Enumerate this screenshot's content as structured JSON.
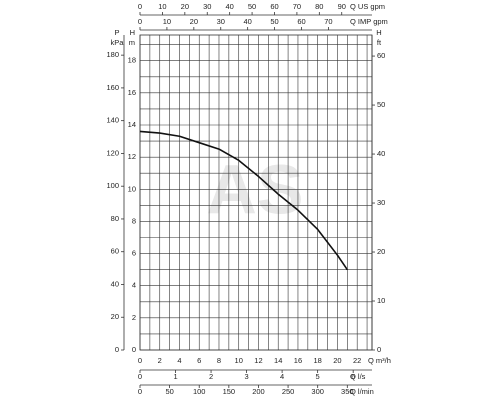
{
  "chart_data": {
    "type": "line",
    "watermark": "AS",
    "x": [
      0,
      2,
      4,
      6,
      8,
      10,
      12,
      14,
      16,
      18,
      20,
      21
    ],
    "values": [
      13.6,
      13.5,
      13.3,
      12.9,
      12.5,
      11.8,
      10.8,
      9.7,
      8.7,
      7.5,
      5.9,
      5.0
    ],
    "color": "#111111",
    "xlabel": "Q m³/h",
    "ylabel": "H",
    "yunit": "m",
    "xlim": [
      0,
      23.5
    ],
    "ylim": [
      0,
      19.6
    ],
    "xticks": [
      0,
      2,
      4,
      6,
      8,
      10,
      12,
      14,
      16,
      18,
      20,
      22
    ],
    "yticks": [
      0,
      2,
      4,
      6,
      8,
      10,
      12,
      14,
      16,
      18
    ],
    "xgrid": [
      0,
      1,
      2,
      3,
      4,
      5,
      6,
      7,
      8,
      9,
      10,
      11,
      12,
      13,
      14,
      15,
      16,
      17,
      18,
      19,
      20,
      21,
      22,
      23
    ],
    "ygrid": [
      0,
      1,
      2,
      3,
      4,
      5,
      6,
      7,
      8,
      9,
      10,
      11,
      12,
      13,
      14,
      15,
      16,
      17,
      18,
      19
    ],
    "axes": [
      {
        "side": "left",
        "label": "P",
        "unit": "kPa",
        "lim": [
          0,
          192.3
        ],
        "ticks": [
          0,
          20,
          40,
          60,
          80,
          100,
          120,
          140,
          160,
          180
        ]
      },
      {
        "side": "right",
        "label": "H",
        "unit": "ft",
        "lim": [
          0,
          64.3
        ],
        "ticks": [
          0,
          10,
          20,
          30,
          40,
          50,
          60
        ]
      },
      {
        "side": "top",
        "label": "Q US gpm",
        "lim": [
          0,
          103.5
        ],
        "ticks": [
          0,
          10,
          20,
          30,
          40,
          50,
          60,
          70,
          80,
          90
        ]
      },
      {
        "side": "top",
        "label": "Q IMP gpm",
        "lim": [
          0,
          86.2
        ],
        "ticks": [
          0,
          10,
          20,
          30,
          40,
          50,
          60,
          70
        ]
      },
      {
        "side": "bottom",
        "label": "Q l/s",
        "lim": [
          0,
          6.53
        ],
        "ticks": [
          0,
          1,
          2,
          3,
          4,
          5,
          6
        ]
      },
      {
        "side": "bottom",
        "label": "Q l/min",
        "lim": [
          0,
          391.7
        ],
        "ticks": [
          0,
          50,
          100,
          150,
          200,
          250,
          300,
          350
        ]
      }
    ]
  }
}
